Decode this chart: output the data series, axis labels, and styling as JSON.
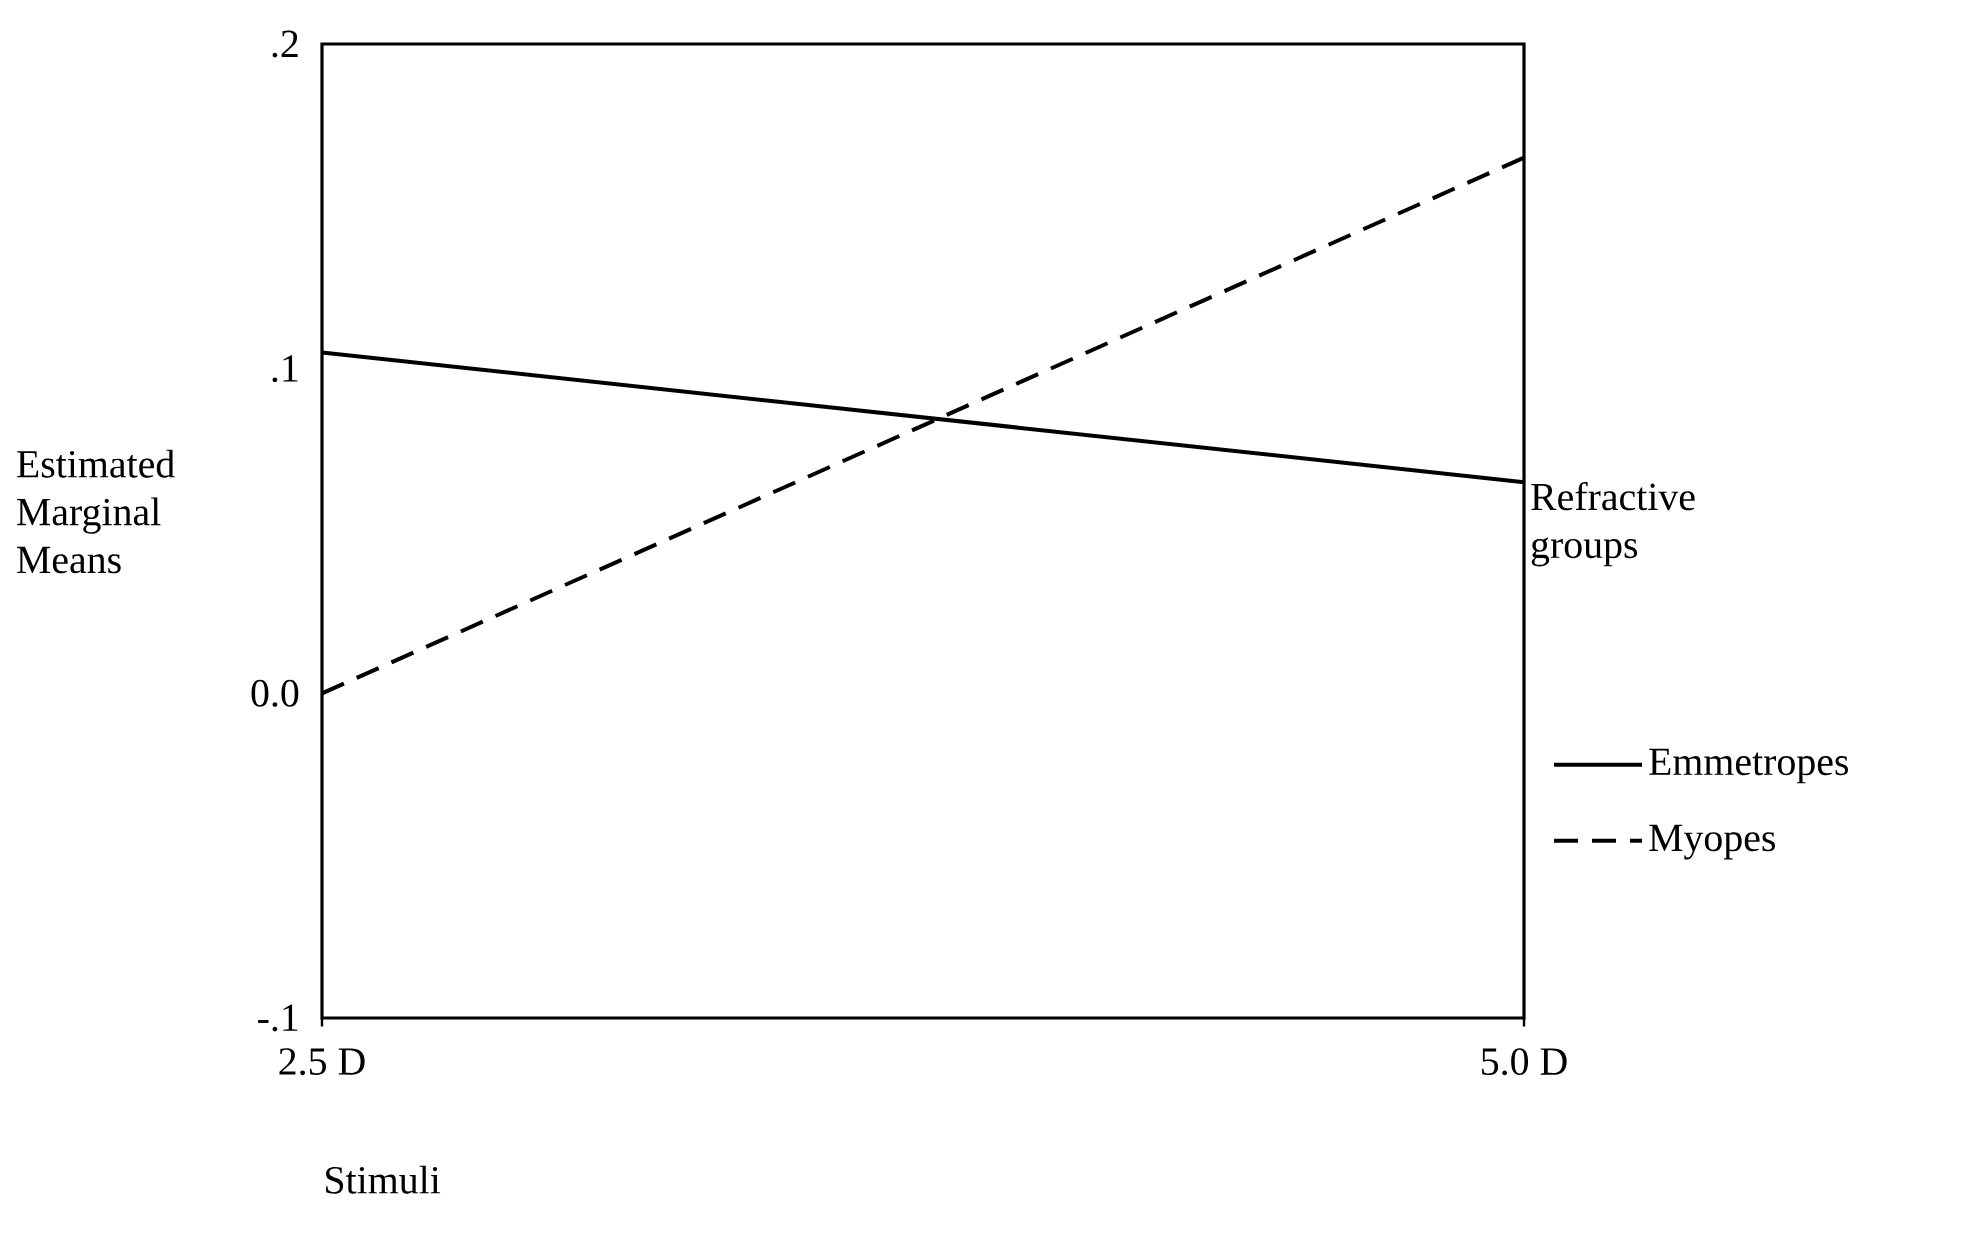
{
  "chart_data": {
    "type": "line",
    "xlabel": "Stimuli",
    "ylabel": "Estimated Marginal Means",
    "legend_title": "Refractive groups",
    "categories": [
      "2.5 D",
      "5.0 D"
    ],
    "series": [
      {
        "name": "Emmetropes",
        "color": "#000000",
        "line_style": "solid",
        "values": [
          0.105,
          0.065
        ]
      },
      {
        "name": "Myopes",
        "color": "#000000",
        "line_style": "dashed",
        "values": [
          0.0,
          0.165
        ]
      }
    ],
    "ylim": [
      -0.1,
      0.2
    ],
    "yticks": [
      {
        "value": -0.1,
        "label": "-.1"
      },
      {
        "value": 0.0,
        "label": "0.0"
      },
      {
        "value": 0.1,
        "label": ".1"
      },
      {
        "value": 0.2,
        "label": ".2"
      }
    ],
    "legend": "right",
    "grid": false,
    "marker": "none"
  }
}
